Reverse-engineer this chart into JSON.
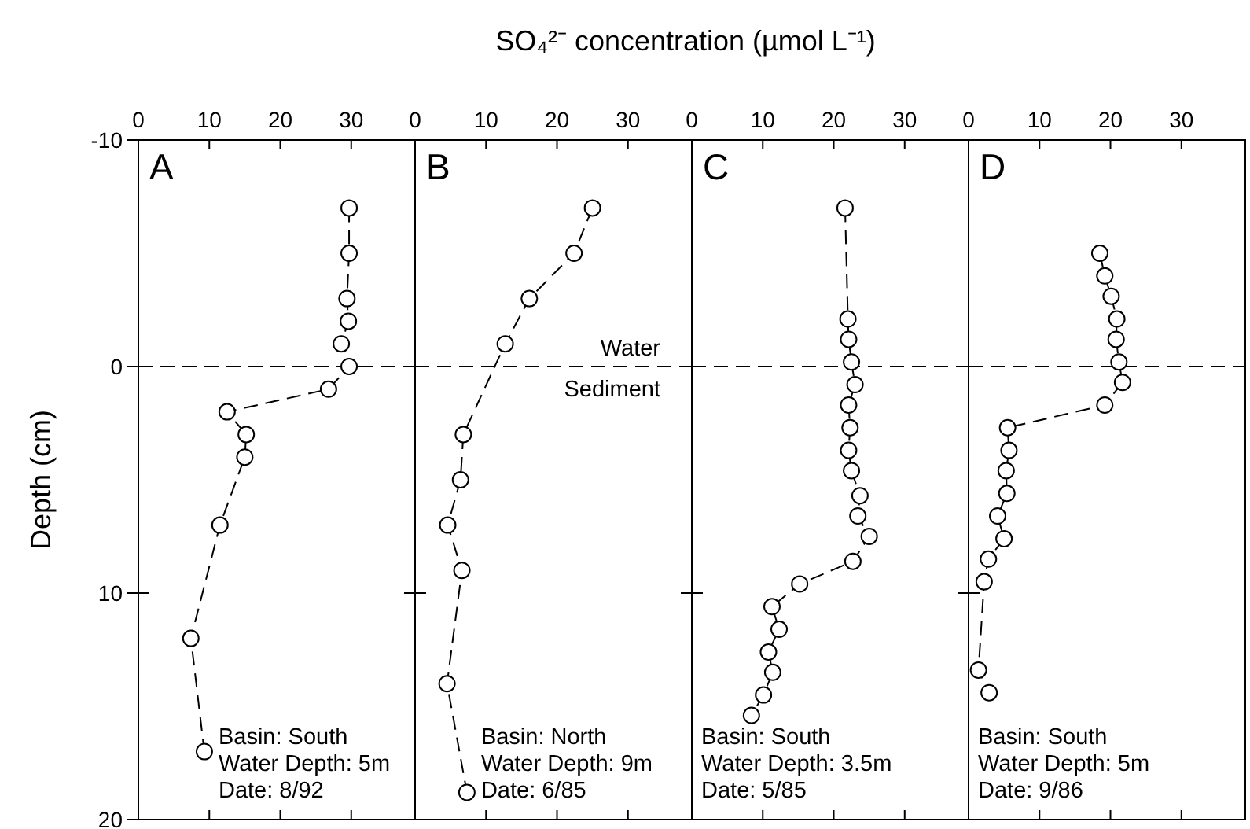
{
  "chart_data": [
    {
      "type": "line",
      "ylabel": "Depth (cm)",
      "xlim": [
        0,
        39
      ],
      "xticks": [
        0,
        10,
        20,
        30
      ],
      "ylim": [
        20,
        -10
      ],
      "yticks": [
        -10,
        0,
        10,
        20
      ],
      "marker": "circle",
      "line_style": "dashed",
      "ref_lines": [
        {
          "axis": "y",
          "value": 0,
          "line_style": "dashed"
        }
      ],
      "annotations": [
        "A",
        "Basin:  South",
        "Water Depth:  5m",
        "Date:  8/92"
      ],
      "series": [
        {
          "color": "#000000",
          "x": [
            29.7,
            29.7,
            29.4,
            29.6,
            28.6,
            29.7,
            26.8,
            12.5,
            15.2,
            15,
            11.5,
            7.4,
            9.3
          ],
          "values": [
            -7,
            -5,
            -3,
            -2,
            -1,
            0,
            1,
            2,
            3,
            4,
            7,
            12,
            17
          ]
        }
      ]
    },
    {
      "type": "line",
      "title": "SO₄²⁻ concentration (µmol L⁻¹)",
      "xlim": [
        0,
        39
      ],
      "xticks": [
        0,
        10,
        20,
        30
      ],
      "ylim": [
        20,
        -10
      ],
      "yticks": [
        -10,
        0,
        10,
        20
      ],
      "tick_labels": "x",
      "marker": "circle",
      "line_style": "dashed",
      "ref_lines": [
        {
          "axis": "y",
          "value": 0,
          "line_style": "dashed"
        }
      ],
      "annotations": [
        "B",
        "Basin:  North",
        "Water Depth:  9m",
        "Date:  6/85",
        "Water",
        "Sediment"
      ],
      "series": [
        {
          "color": "#000000",
          "x": [
            25,
            22.4,
            16.1,
            12.7,
            6.8,
            6.4,
            4.6,
            6.6,
            4.5,
            7.3
          ],
          "values": [
            -7,
            -5,
            -3,
            -1,
            3,
            5,
            7,
            9,
            14,
            18.8
          ]
        }
      ]
    },
    {
      "type": "line",
      "xlim": [
        0,
        39
      ],
      "xticks": [
        0,
        10,
        20,
        30
      ],
      "ylim": [
        20,
        -10
      ],
      "yticks": [
        -10,
        0,
        10,
        20
      ],
      "tick_labels": "x",
      "marker": "circle",
      "line_style": "dashed",
      "ref_lines": [
        {
          "axis": "y",
          "value": 0,
          "line_style": "dashed"
        }
      ],
      "annotations": [
        "C",
        "Basin:  South",
        "Water Depth:  3.5m",
        "Date:  5/85"
      ],
      "series": [
        {
          "color": "#000000",
          "x": [
            21.6,
            22,
            22.1,
            22.5,
            23,
            22.1,
            22.3,
            22.1,
            22.5,
            23.7,
            23.4,
            25,
            22.7,
            15.2,
            11.3,
            12.3,
            10.8,
            11.4,
            10.1,
            8.4
          ],
          "values": [
            -7,
            -2.1,
            -1.2,
            -0.2,
            0.8,
            1.7,
            2.7,
            3.7,
            4.6,
            5.7,
            6.6,
            7.5,
            8.6,
            9.6,
            10.6,
            11.6,
            12.6,
            13.5,
            14.5,
            15.4
          ]
        }
      ]
    },
    {
      "type": "line",
      "xlim": [
        0,
        39
      ],
      "xticks": [
        0,
        10,
        20,
        30
      ],
      "ylim": [
        20,
        -10
      ],
      "yticks": [
        -10,
        0,
        10,
        20
      ],
      "tick_labels": "x",
      "marker": "circle",
      "line_style": "dashed",
      "ref_lines": [
        {
          "axis": "y",
          "value": 0,
          "line_style": "dashed"
        }
      ],
      "annotations": [
        "D",
        "Basin:  South",
        "Water Depth:  5m",
        "Date:  9/86"
      ],
      "series": [
        {
          "color": "#000000",
          "x": [
            18.5,
            19.2,
            20.1,
            20.9,
            20.8,
            21.2,
            21.7,
            19.2,
            5.5,
            5.7,
            5.3,
            5.4,
            4.1,
            5,
            2.8,
            2.2,
            1.4,
            2.9
          ],
          "values": [
            -5,
            -4,
            -3.1,
            -2.1,
            -1.2,
            -0.2,
            0.7,
            1.7,
            2.7,
            3.7,
            4.6,
            5.6,
            6.6,
            7.6,
            8.5,
            9.5,
            13.4,
            14.4
          ]
        }
      ]
    }
  ]
}
